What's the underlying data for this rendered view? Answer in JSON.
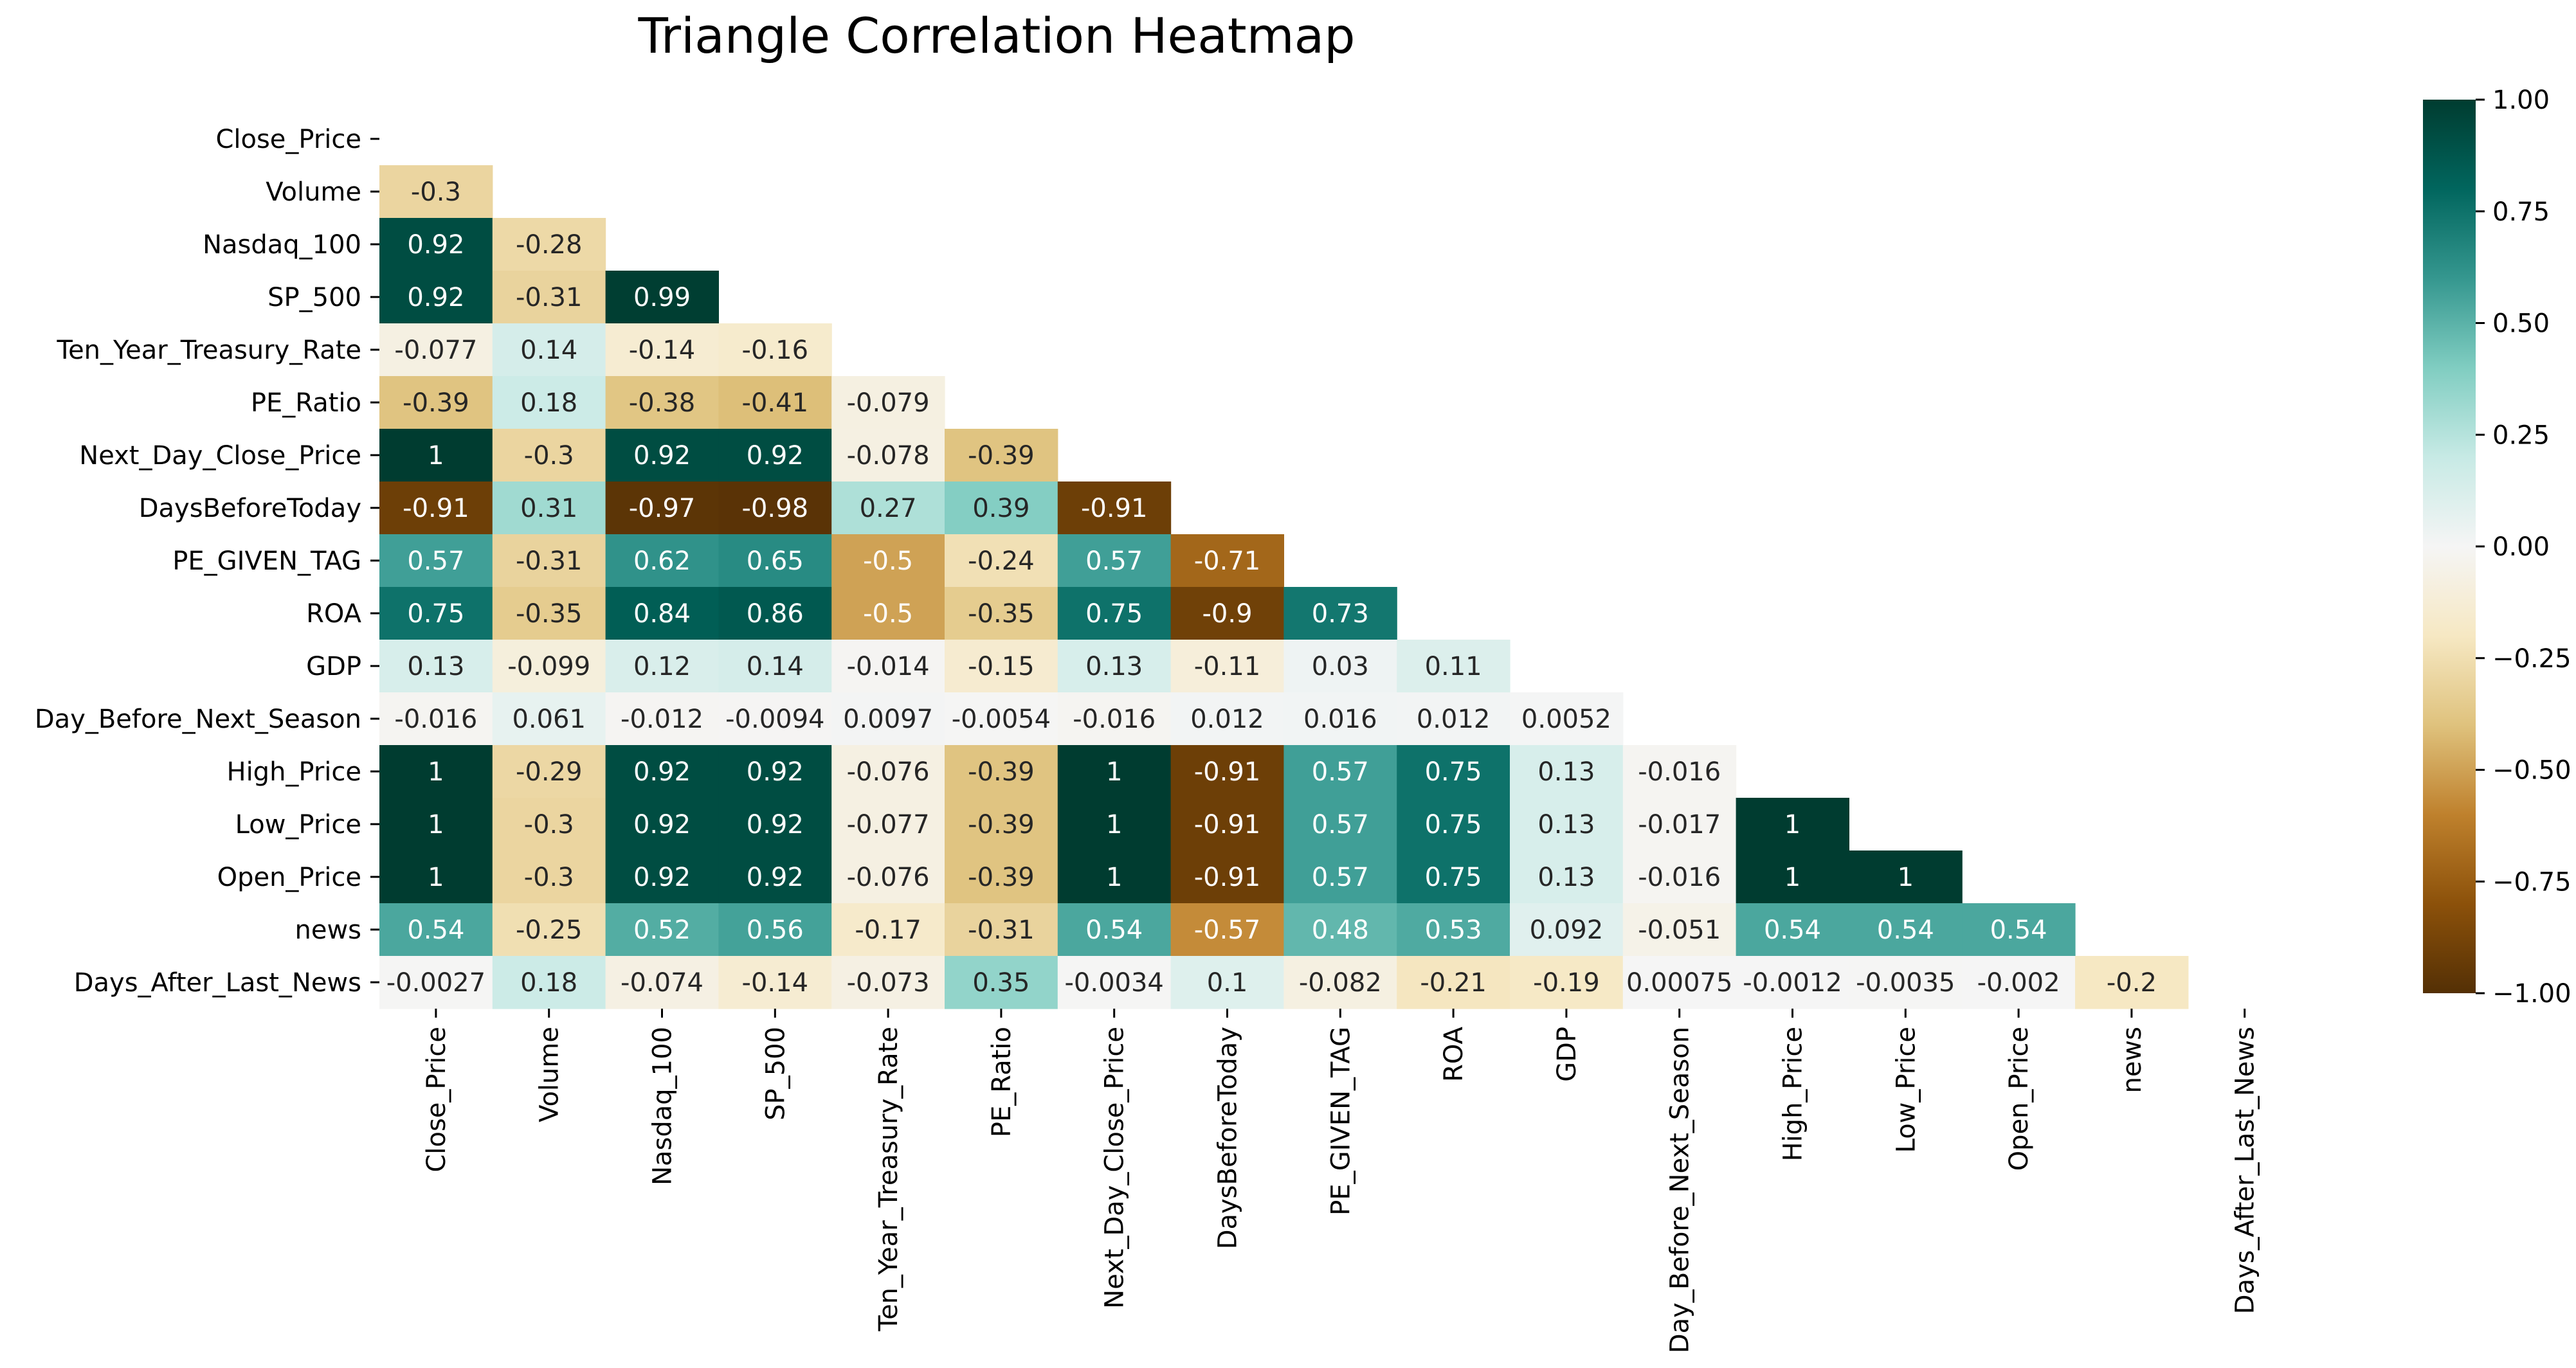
{
  "chart_data": {
    "type": "heatmap",
    "title": "Triangle Correlation Heatmap",
    "variables": [
      "Close_Price",
      "Volume",
      "Nasdaq_100",
      "SP_500",
      "Ten_Year_Treasury_Rate",
      "PE_Ratio",
      "Next_Day_Close_Price",
      "DaysBeforeToday",
      "PE_GIVEN_TAG",
      "ROA",
      "GDP",
      "Day_Before_Next_Season",
      "High_Price",
      "Low_Price",
      "Open_Price",
      "news",
      "Days_After_Last_News"
    ],
    "mask": "upper triangle including diagonal",
    "cell_labels": [
      [],
      [
        "-0.3"
      ],
      [
        "0.92",
        "-0.28"
      ],
      [
        "0.92",
        "-0.31",
        "0.99"
      ],
      [
        "-0.077",
        "0.14",
        "-0.14",
        "-0.16"
      ],
      [
        "-0.39",
        "0.18",
        "-0.38",
        "-0.41",
        "-0.079"
      ],
      [
        "1",
        "-0.3",
        "0.92",
        "0.92",
        "-0.078",
        "-0.39"
      ],
      [
        "-0.91",
        "0.31",
        "-0.97",
        "-0.98",
        "0.27",
        "0.39",
        "-0.91"
      ],
      [
        "0.57",
        "-0.31",
        "0.62",
        "0.65",
        "-0.5",
        "-0.24",
        "0.57",
        "-0.71"
      ],
      [
        "0.75",
        "-0.35",
        "0.84",
        "0.86",
        "-0.5",
        "-0.35",
        "0.75",
        "-0.9",
        "0.73"
      ],
      [
        "0.13",
        "-0.099",
        "0.12",
        "0.14",
        "-0.014",
        "-0.15",
        "0.13",
        "-0.11",
        "0.03",
        "0.11"
      ],
      [
        "-0.016",
        "0.061",
        "-0.012",
        "-0.0094",
        "0.0097",
        "-0.0054",
        "-0.016",
        "0.012",
        "0.016",
        "0.012",
        "0.0052"
      ],
      [
        "1",
        "-0.29",
        "0.92",
        "0.92",
        "-0.076",
        "-0.39",
        "1",
        "-0.91",
        "0.57",
        "0.75",
        "0.13",
        "-0.016"
      ],
      [
        "1",
        "-0.3",
        "0.92",
        "0.92",
        "-0.077",
        "-0.39",
        "1",
        "-0.91",
        "0.57",
        "0.75",
        "0.13",
        "-0.017",
        "1"
      ],
      [
        "1",
        "-0.3",
        "0.92",
        "0.92",
        "-0.076",
        "-0.39",
        "1",
        "-0.91",
        "0.57",
        "0.75",
        "0.13",
        "-0.016",
        "1",
        "1"
      ],
      [
        "0.54",
        "-0.25",
        "0.52",
        "0.56",
        "-0.17",
        "-0.31",
        "0.54",
        "-0.57",
        "0.48",
        "0.53",
        "0.092",
        "-0.051",
        "0.54",
        "0.54",
        "0.54"
      ],
      [
        "-0.0027",
        "0.18",
        "-0.074",
        "-0.14",
        "-0.073",
        "0.35",
        "-0.0034",
        "0.1",
        "-0.082",
        "-0.21",
        "-0.19",
        "0.00075",
        "-0.0012",
        "-0.0035",
        "-0.002",
        "-0.2"
      ]
    ],
    "value_range": [
      -1,
      1
    ],
    "colormap": "BrBG",
    "colorbar": {
      "ticks": [
        "1.00",
        "0.75",
        "0.50",
        "0.25",
        "0.00",
        "−0.25",
        "−0.50",
        "−0.75",
        "−1.00"
      ],
      "tick_values": [
        1,
        0.75,
        0.5,
        0.25,
        0,
        -0.25,
        -0.5,
        -0.75,
        -1
      ]
    },
    "colormap_stops": [
      {
        "v": -1.0,
        "color": "#543005"
      },
      {
        "v": -0.8,
        "color": "#8c510a"
      },
      {
        "v": -0.6,
        "color": "#bf812d"
      },
      {
        "v": -0.4,
        "color": "#dfc27d"
      },
      {
        "v": -0.2,
        "color": "#f6e8c3"
      },
      {
        "v": 0.0,
        "color": "#f5f5f5"
      },
      {
        "v": 0.2,
        "color": "#c7eae5"
      },
      {
        "v": 0.4,
        "color": "#80cdc1"
      },
      {
        "v": 0.6,
        "color": "#35978f"
      },
      {
        "v": 0.8,
        "color": "#01665e"
      },
      {
        "v": 1.0,
        "color": "#003c30"
      }
    ],
    "text_color_dark": "#262626",
    "text_color_light": "#ffffff",
    "axis_color": "#000000"
  }
}
